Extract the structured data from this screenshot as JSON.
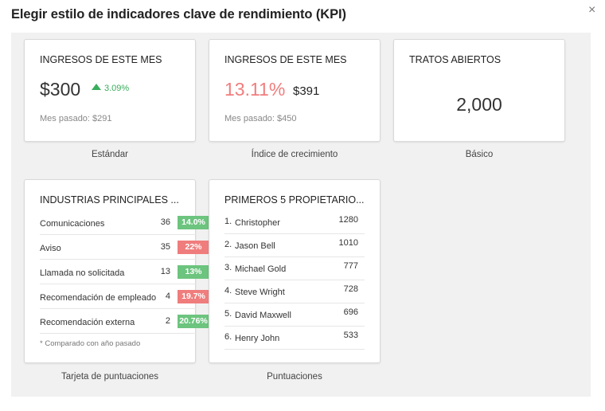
{
  "dialog": {
    "title": "Elegir estilo de indicadores clave de rendimiento (KPI)",
    "close_glyph": "×"
  },
  "cards": {
    "standard": {
      "title": "INGRESOS DE ESTE MES",
      "value": "$300",
      "trend": "3.09%",
      "trend_direction": "up",
      "footer": "Mes pasado: $291",
      "caption": "Estándar"
    },
    "growth": {
      "title": "INGRESOS DE ESTE MES",
      "percent": "13.11%",
      "value": "$391",
      "footer": "Mes pasado: $450",
      "caption": "Índice de crecimiento"
    },
    "basic": {
      "title": "TRATOS ABIERTOS",
      "value": "2,000",
      "caption": "Básico"
    },
    "scorecard": {
      "title": "INDUSTRIAS PRINCIPALES ...",
      "rows": [
        {
          "label": "Comunicaciones",
          "count": "36",
          "change": "14.0%",
          "status": "positive"
        },
        {
          "label": "Aviso",
          "count": "35",
          "change": "22%",
          "status": "negative"
        },
        {
          "label": "Llamada no solicitada",
          "count": "13",
          "change": "13%",
          "status": "positive"
        },
        {
          "label": "Recomendación de empleado",
          "count": "4",
          "change": "19.7%",
          "status": "negative"
        },
        {
          "label": "Recomendación externa",
          "count": "2",
          "change": "20.76%",
          "status": "positive"
        }
      ],
      "footnote": "* Comparado con año pasado",
      "caption": "Tarjeta de puntuaciones"
    },
    "rankings": {
      "title": "PRIMEROS 5 PROPIETARIO...",
      "rows": [
        {
          "rank": "1.",
          "name": "Christopher",
          "score": "1280"
        },
        {
          "rank": "2.",
          "name": "Jason Bell",
          "score": "1010"
        },
        {
          "rank": "3.",
          "name": "Michael Gold",
          "score": "777"
        },
        {
          "rank": "4.",
          "name": "Steve Wright",
          "score": "728"
        },
        {
          "rank": "5.",
          "name": "David Maxwell",
          "score": "696"
        },
        {
          "rank": "6.",
          "name": "Henry John",
          "score": "533"
        }
      ],
      "caption": "Puntuaciones"
    }
  },
  "colors": {
    "positive": "#6cc47e",
    "negative": "#f07d7d",
    "trend_up": "#3aad5c",
    "growth_percent": "#f07d7d",
    "panel_background": "#f1f1f1"
  }
}
